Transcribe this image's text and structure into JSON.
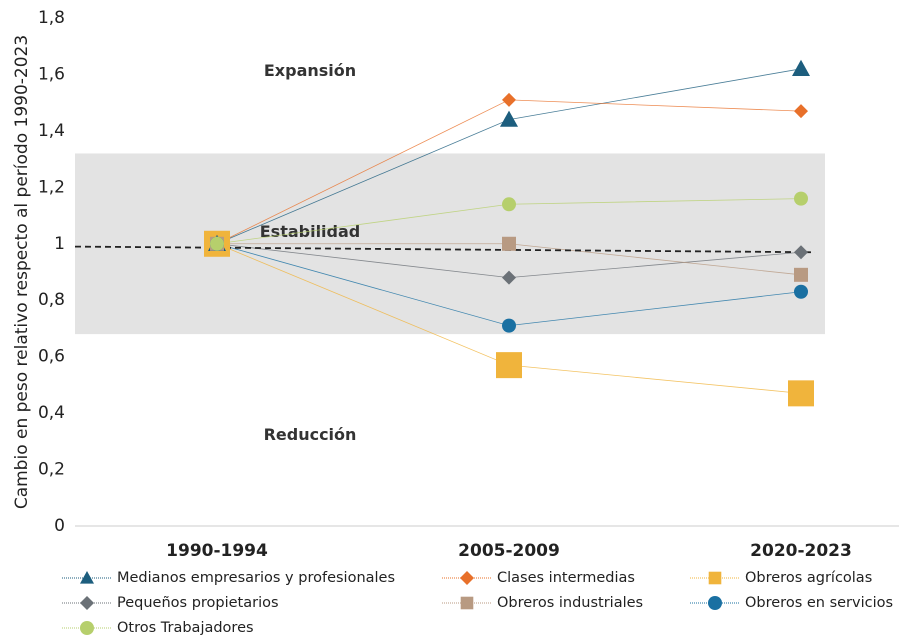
{
  "chart_data": {
    "type": "line",
    "y_label": "Cambio en peso relativo respecto al período 1990-2023",
    "categories": [
      "1990-1994",
      "2005-2009",
      "2020-2023"
    ],
    "ylim": [
      0,
      1.8
    ],
    "yticks": [
      0,
      {
        "value": 0.2,
        "label": "0,2"
      },
      {
        "value": 0.4,
        "label": "0,4"
      },
      {
        "value": 0.6,
        "label": "0,6"
      },
      {
        "value": 0.8,
        "label": "0,8"
      },
      1,
      {
        "value": 1.2,
        "label": "1,2"
      },
      {
        "value": 1.4,
        "label": "1,4"
      },
      {
        "value": 1.6,
        "label": "1,6"
      },
      {
        "value": 1.8,
        "label": "1,8"
      }
    ],
    "band": [
      0.68,
      1.32
    ],
    "band_color": "#e3e3e3",
    "reference_line": [
      0.99,
      0.97
    ],
    "annotations": [
      {
        "text": "Expansión",
        "y": 1.61
      },
      {
        "text": "Estabilidad",
        "y": 1.04
      },
      {
        "text": "Reducción",
        "y": 0.32
      }
    ],
    "series": [
      {
        "name": "Medianos empresarios y profesionales",
        "color": "#1d5e7e",
        "marker": "triangle",
        "values": [
          1,
          1.44,
          1.62
        ]
      },
      {
        "name": "Clases intermedias",
        "color": "#e8702a",
        "marker": "diamond",
        "values": [
          1,
          1.51,
          1.47
        ]
      },
      {
        "name": "Obreros agrícolas",
        "color": "#f0b43c",
        "marker": "square",
        "values": [
          1,
          0.57,
          0.47
        ]
      },
      {
        "name": "Pequeños propietarios",
        "color": "#6b7177",
        "marker": "diamond",
        "values": [
          1,
          0.88,
          0.97
        ]
      },
      {
        "name": "Obreros industriales",
        "color": "#b89a82",
        "marker": "square",
        "values": [
          1,
          1.0,
          0.89
        ]
      },
      {
        "name": "Obreros en servicios",
        "color": "#1a70a2",
        "marker": "circle",
        "values": [
          1,
          0.71,
          0.83
        ]
      },
      {
        "name": "Otros Trabajadores",
        "color": "#b6cf6c",
        "marker": "circle",
        "values": [
          1,
          1.14,
          1.16
        ]
      }
    ]
  }
}
